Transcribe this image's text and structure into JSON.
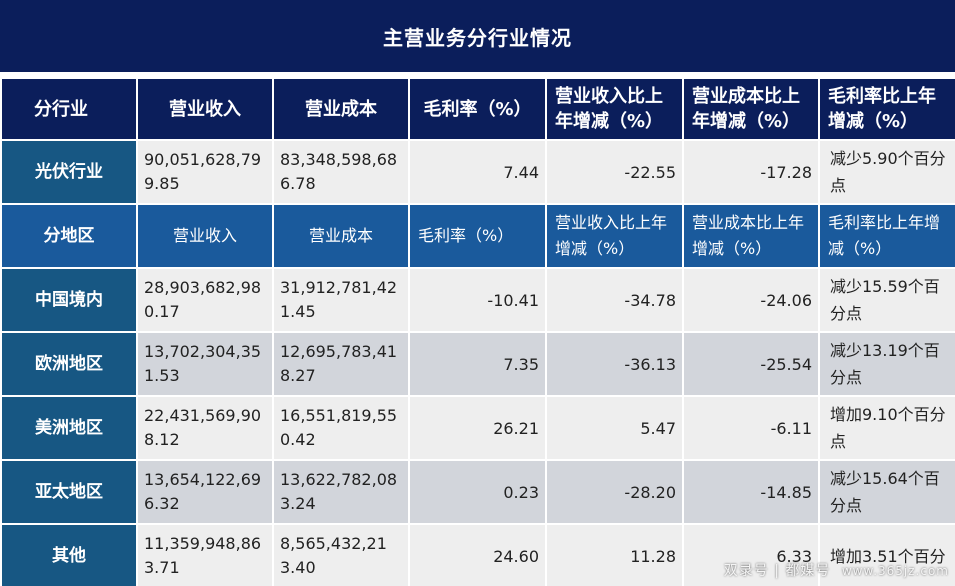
{
  "title": "主营业务分行业情况",
  "header": [
    "分行业",
    "营业收入",
    "营业成本",
    "毛利率（%）",
    "营业收入比上年增减（%）",
    "营业成本比上年增减（%）",
    "毛利率比上年增减（%）"
  ],
  "industry_row": {
    "label": "光伏行业",
    "revenue": "90,051,628,799.85",
    "cost": "83,348,598,686.78",
    "margin": "7.44",
    "revenue_change": "-22.55",
    "cost_change": "-17.28",
    "margin_change": "减少5.90个百分点"
  },
  "region_header": [
    "分地区",
    "营业收入",
    "营业成本",
    "毛利率（%）",
    "营业收入比上年增减（%）",
    "营业成本比上年增减（%）",
    "毛利率比上年增减（%）"
  ],
  "regions": [
    {
      "label": "中国境内",
      "revenue": "28,903,682,980.17",
      "cost": "31,912,781,421.45",
      "margin": "-10.41",
      "revenue_change": "-34.78",
      "cost_change": "-24.06",
      "margin_change": "减少15.59个百分点"
    },
    {
      "label": "欧洲地区",
      "revenue": "13,702,304,351.53",
      "cost": "12,695,783,418.27",
      "margin": "7.35",
      "revenue_change": "-36.13",
      "cost_change": "-25.54",
      "margin_change": "减少13.19个百分点"
    },
    {
      "label": "美洲地区",
      "revenue": "22,431,569,908.12",
      "cost": "16,551,819,550.42",
      "margin": "26.21",
      "revenue_change": "5.47",
      "cost_change": "-6.11",
      "margin_change": "增加9.10个百分点"
    },
    {
      "label": "亚太地区",
      "revenue": "13,654,122,696.32",
      "cost": "13,622,782,083.24",
      "margin": "0.23",
      "revenue_change": "-28.20",
      "cost_change": "-14.85",
      "margin_change": "减少15.64个百分点"
    },
    {
      "label": "其他",
      "revenue": "11,359,948,863.71",
      "cost": "8,565,432,213.40",
      "margin": "24.60",
      "revenue_change": "11.28",
      "cost_change": "6.33",
      "margin_change": "增加3.51个百分"
    }
  ],
  "watermark": {
    "text": "双录号 | 都媒号",
    "url": "www.365jz.com"
  }
}
